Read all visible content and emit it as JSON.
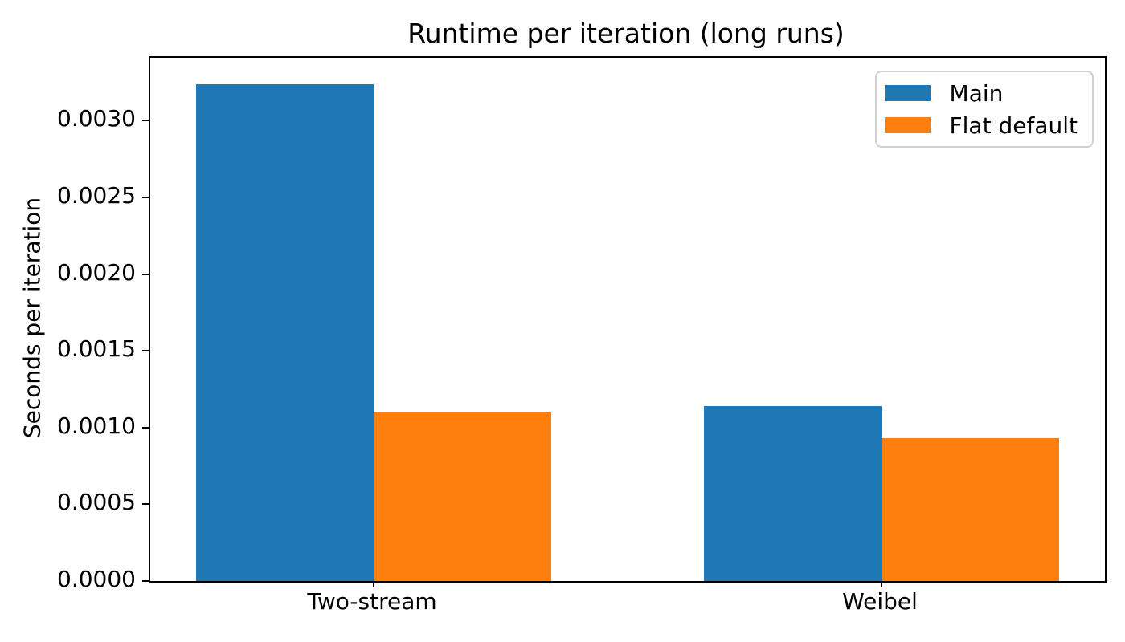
{
  "title": "Runtime per iteration (long runs)",
  "chart_data": {
    "type": "bar",
    "title": "Runtime per iteration (long runs)",
    "xlabel": "",
    "ylabel": "Seconds per iteration",
    "categories": [
      "Two-stream",
      "Weibel"
    ],
    "series": [
      {
        "name": "Main",
        "color": "#1f77b4",
        "values": [
          0.00324,
          0.00114
        ]
      },
      {
        "name": "Flat default",
        "color": "#ff7f0e",
        "values": [
          0.0011,
          0.00093
        ]
      }
    ],
    "bar_width": 0.35,
    "xlim": [
      -0.44,
      1.44
    ],
    "ylim": [
      0,
      0.00341
    ],
    "yticks": [
      0,
      0.0005,
      0.001,
      0.0015,
      0.002,
      0.0025,
      0.003
    ],
    "ytick_labels": [
      "0.0000",
      "0.0005",
      "0.0010",
      "0.0015",
      "0.0020",
      "0.0025",
      "0.0030"
    ],
    "grid": false,
    "legend_position": "upper right"
  }
}
